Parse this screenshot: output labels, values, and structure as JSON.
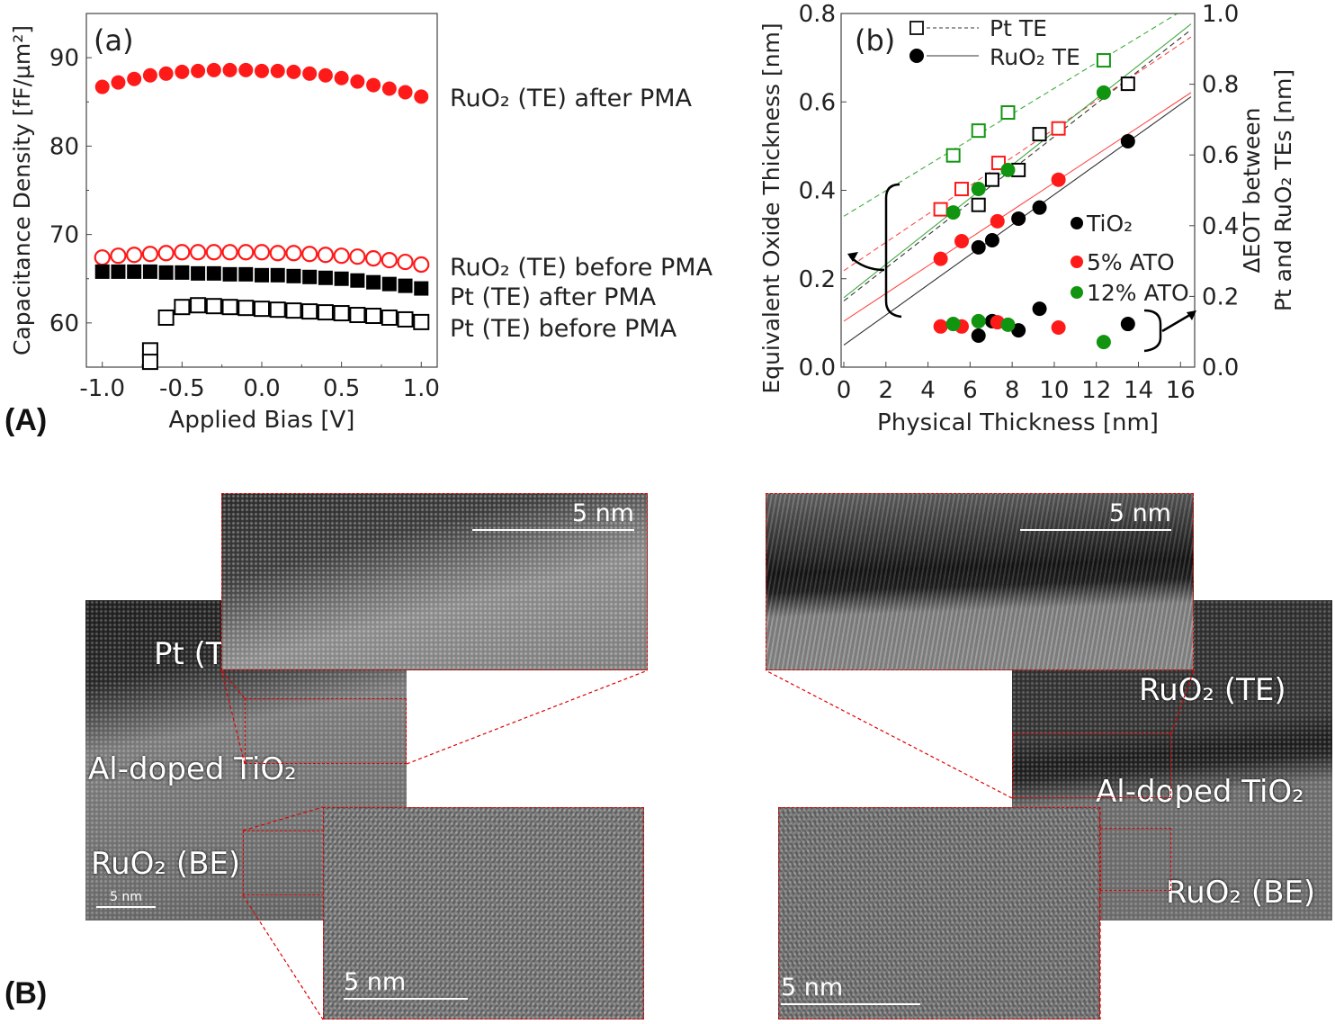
{
  "panel_labels": {
    "A": "(A)",
    "B": "(B)"
  },
  "colors": {
    "tio2": "#000000",
    "ato5": "#ff1a1a",
    "ato12": "#119511",
    "ruo2_after": "#ff1a1a",
    "ruo2_before": "#ff1a1a",
    "pt": "#000000",
    "inset_border": "#e00000"
  },
  "chart_data": [
    {
      "type": "scatter",
      "panel": "(a)",
      "xlabel": "Applied Bias [V]",
      "ylabel": "Capacitance Density [fF/µm²]",
      "xlim": [
        -1.1,
        1.1
      ],
      "ylim": [
        55,
        95
      ],
      "xticks": [
        "-1.0",
        "-0.5",
        "0.0",
        "0.5",
        "1.0"
      ],
      "yticks": [
        "60",
        "70",
        "80",
        "90"
      ],
      "grid": false,
      "series": [
        {
          "name": "RuO₂ (TE) after PMA",
          "marker": "filled-circle",
          "color": "#ff1a1a",
          "x": [
            -1.0,
            -0.9,
            -0.8,
            -0.7,
            -0.6,
            -0.5,
            -0.4,
            -0.3,
            -0.2,
            -0.1,
            0.0,
            0.1,
            0.2,
            0.3,
            0.4,
            0.5,
            0.6,
            0.7,
            0.8,
            0.9,
            1.0
          ],
          "y": [
            86.7,
            87.2,
            87.6,
            88.0,
            88.2,
            88.4,
            88.5,
            88.6,
            88.6,
            88.6,
            88.5,
            88.5,
            88.4,
            88.2,
            88.0,
            87.7,
            87.3,
            86.9,
            86.5,
            86.1,
            85.6
          ]
        },
        {
          "name": "RuO₂ (TE) before PMA",
          "marker": "open-circle",
          "color": "#ff1a1a",
          "x": [
            -1.0,
            -0.9,
            -0.8,
            -0.7,
            -0.6,
            -0.5,
            -0.4,
            -0.3,
            -0.2,
            -0.1,
            0.0,
            0.1,
            0.2,
            0.3,
            0.4,
            0.5,
            0.6,
            0.7,
            0.8,
            0.9,
            1.0
          ],
          "y": [
            67.4,
            67.6,
            67.7,
            67.8,
            67.9,
            68.0,
            68.0,
            68.0,
            68.0,
            68.0,
            68.0,
            67.9,
            67.9,
            67.8,
            67.7,
            67.6,
            67.5,
            67.3,
            67.1,
            66.9,
            66.6
          ]
        },
        {
          "name": "Pt (TE) after PMA",
          "marker": "filled-square",
          "color": "#000000",
          "x": [
            -1.0,
            -0.9,
            -0.8,
            -0.7,
            -0.6,
            -0.5,
            -0.4,
            -0.3,
            -0.2,
            -0.1,
            0.0,
            0.1,
            0.2,
            0.3,
            0.4,
            0.5,
            0.6,
            0.7,
            0.8,
            0.9,
            1.0
          ],
          "y": [
            65.8,
            65.8,
            65.8,
            65.8,
            65.7,
            65.7,
            65.6,
            65.6,
            65.5,
            65.5,
            65.4,
            65.4,
            65.3,
            65.2,
            65.1,
            65.0,
            64.8,
            64.6,
            64.4,
            64.2,
            63.9
          ]
        },
        {
          "name": "Pt (TE) before PMA",
          "marker": "open-square",
          "color": "#000000",
          "x": [
            -0.7,
            -0.7,
            -0.6,
            -0.5,
            -0.4,
            -0.3,
            -0.2,
            -0.1,
            0.0,
            0.1,
            0.2,
            0.3,
            0.4,
            0.5,
            0.6,
            0.7,
            0.8,
            0.9,
            1.0
          ],
          "y": [
            56.9,
            55.6,
            60.6,
            61.8,
            62.0,
            61.9,
            61.8,
            61.7,
            61.6,
            61.5,
            61.4,
            61.3,
            61.2,
            61.1,
            60.9,
            60.8,
            60.6,
            60.4,
            60.1
          ]
        }
      ]
    },
    {
      "type": "scatter",
      "panel": "(b)",
      "xlabel": "Physical Thickness [nm]",
      "ylabel": "Equivalent Oxide Thickness [nm]",
      "ylabel_right": [
        "ΔEOT between",
        "Pt and RuO₂ TEs [nm]"
      ],
      "xlim": [
        0,
        16.8
      ],
      "ylim": [
        0,
        0.8
      ],
      "ylim_right": [
        0,
        1.0
      ],
      "xticks": [
        "0",
        "2",
        "4",
        "6",
        "8",
        "10",
        "12",
        "14",
        "16"
      ],
      "yticks": [
        "0.0",
        "0.2",
        "0.4",
        "0.6",
        "0.8"
      ],
      "yticks_right": [
        "0.0",
        "0.2",
        "0.4",
        "0.6",
        "0.8",
        "1.0"
      ],
      "grid": false,
      "legend_electrode": [
        {
          "label": "Pt TE",
          "marker": "open-square",
          "line": "dashed"
        },
        {
          "label": "RuO₂ TE",
          "marker": "filled-circle",
          "line": "solid"
        }
      ],
      "legend_material": [
        {
          "label": "TiO₂",
          "color": "#000000"
        },
        {
          "label": "5% ATO",
          "color": "#ff1a1a"
        },
        {
          "label": "12% ATO",
          "color": "#119511"
        }
      ],
      "series": [
        {
          "material": "TiO₂",
          "electrode": "Pt TE",
          "color": "#000000",
          "axis": "left",
          "x": [
            6.4,
            7.05,
            8.3,
            9.3,
            13.5
          ],
          "y": [
            0.367,
            0.424,
            0.446,
            0.527,
            0.641
          ]
        },
        {
          "material": "5% ATO",
          "electrode": "Pt TE",
          "color": "#ff1a1a",
          "axis": "left",
          "x": [
            4.6,
            5.6,
            7.35,
            10.2
          ],
          "y": [
            0.357,
            0.403,
            0.462,
            0.54
          ]
        },
        {
          "material": "12% ATO",
          "electrode": "Pt TE",
          "color": "#119511",
          "axis": "left",
          "x": [
            5.2,
            6.4,
            7.8,
            12.35
          ],
          "y": [
            0.479,
            0.535,
            0.576,
            0.694
          ]
        },
        {
          "material": "TiO₂",
          "electrode": "RuO₂ TE",
          "color": "#000000",
          "axis": "left",
          "x": [
            6.4,
            7.05,
            8.3,
            9.3,
            13.5
          ],
          "y": [
            0.271,
            0.287,
            0.336,
            0.361,
            0.511
          ]
        },
        {
          "material": "5% ATO",
          "electrode": "RuO₂ TE",
          "color": "#ff1a1a",
          "axis": "left",
          "x": [
            4.6,
            5.6,
            7.3,
            10.2
          ],
          "y": [
            0.245,
            0.285,
            0.33,
            0.424
          ]
        },
        {
          "material": "12% ATO",
          "electrode": "RuO₂ TE",
          "color": "#119511",
          "axis": "left",
          "x": [
            5.2,
            6.4,
            7.8,
            12.35
          ],
          "y": [
            0.35,
            0.403,
            0.446,
            0.621
          ]
        },
        {
          "material": "TiO₂",
          "electrode": "ΔEOT",
          "color": "#000000",
          "axis": "right",
          "x": [
            6.4,
            7.05,
            8.3,
            9.3,
            13.5
          ],
          "y": [
            0.089,
            0.13,
            0.104,
            0.165,
            0.122
          ]
        },
        {
          "material": "5% ATO",
          "electrode": "ΔEOT",
          "color": "#ff1a1a",
          "axis": "right",
          "x": [
            4.6,
            5.6,
            7.3,
            10.2
          ],
          "y": [
            0.115,
            0.115,
            0.127,
            0.112
          ]
        },
        {
          "material": "12% ATO",
          "electrode": "ΔEOT",
          "color": "#119511",
          "axis": "right",
          "x": [
            5.2,
            6.4,
            7.8,
            12.35
          ],
          "y": [
            0.122,
            0.13,
            0.12,
            0.071
          ]
        }
      ]
    }
  ],
  "tem": {
    "left": {
      "labels": {
        "top": "Pt (TE)",
        "middle": "Al-doped TiO₂",
        "bottom": "RuO₂ (BE)"
      },
      "scale_main": "5 nm",
      "scale_top_inset": "5 nm",
      "scale_bottom_inset": "5 nm"
    },
    "right": {
      "labels": {
        "top": "RuO₂ (TE)",
        "middle": "Al-doped TiO₂",
        "bottom": "RuO₂ (BE)"
      },
      "scale_top_inset": "5 nm",
      "scale_bottom_inset": "5 nm"
    }
  }
}
